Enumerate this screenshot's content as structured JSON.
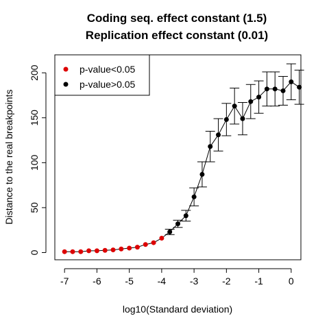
{
  "chart_data": {
    "type": "scatter",
    "title": "Coding seq. effect constant (1.5)",
    "subtitle": "Replication effect constant (0.01)",
    "xlabel": "log10(Standard deviation)",
    "ylabel": "Distance to the real breakpoints",
    "xlim": [
      -7.3,
      0.3
    ],
    "ylim": [
      -8,
      220
    ],
    "x_ticks": [
      -7,
      -6,
      -5,
      -4,
      -3,
      -2,
      -1,
      0
    ],
    "y_ticks": [
      0,
      50,
      100,
      150,
      200
    ],
    "grid": false,
    "legend_position": "top-left",
    "colors": {
      "significant": "#dd0000",
      "not_significant": "#000000",
      "line": "#000000"
    },
    "legend": [
      {
        "label": "p-value<0.05",
        "color_key": "significant"
      },
      {
        "label": "p-value>0.05",
        "color_key": "not_significant"
      }
    ],
    "points": [
      {
        "x": -7.0,
        "y": 1,
        "sig": true
      },
      {
        "x": -6.75,
        "y": 1,
        "sig": true
      },
      {
        "x": -6.5,
        "y": 1,
        "sig": true
      },
      {
        "x": -6.25,
        "y": 2,
        "sig": true
      },
      {
        "x": -6.0,
        "y": 2,
        "sig": true
      },
      {
        "x": -5.75,
        "y": 2.5,
        "sig": true
      },
      {
        "x": -5.5,
        "y": 3,
        "sig": true
      },
      {
        "x": -5.25,
        "y": 4,
        "sig": true
      },
      {
        "x": -5.0,
        "y": 5,
        "sig": true
      },
      {
        "x": -4.75,
        "y": 6,
        "sig": true
      },
      {
        "x": -4.5,
        "y": 9,
        "sig": true
      },
      {
        "x": -4.25,
        "y": 11,
        "sig": true
      },
      {
        "x": -4.0,
        "y": 16,
        "sig": true
      },
      {
        "x": -3.75,
        "y": 23,
        "sig": false,
        "err": 3
      },
      {
        "x": -3.5,
        "y": 32,
        "sig": false,
        "err": 4
      },
      {
        "x": -3.25,
        "y": 41,
        "sig": false,
        "err": 6
      },
      {
        "x": -3.0,
        "y": 62,
        "sig": false,
        "err": 10
      },
      {
        "x": -2.75,
        "y": 87,
        "sig": false,
        "err": 14
      },
      {
        "x": -2.5,
        "y": 118,
        "sig": false,
        "err": 17
      },
      {
        "x": -2.25,
        "y": 131,
        "sig": false,
        "err": 18
      },
      {
        "x": -2.0,
        "y": 148,
        "sig": false,
        "err": 18
      },
      {
        "x": -1.75,
        "y": 163,
        "sig": false,
        "err": 20
      },
      {
        "x": -1.5,
        "y": 149,
        "sig": false,
        "err": 18
      },
      {
        "x": -1.25,
        "y": 168,
        "sig": false,
        "err": 19
      },
      {
        "x": -1.0,
        "y": 173,
        "sig": false,
        "err": 18
      },
      {
        "x": -0.75,
        "y": 182,
        "sig": false,
        "err": 19
      },
      {
        "x": -0.5,
        "y": 182,
        "sig": false,
        "err": 19
      },
      {
        "x": -0.25,
        "y": 180,
        "sig": false,
        "err": 16
      },
      {
        "x": 0.0,
        "y": 190,
        "sig": false,
        "err": 20
      },
      {
        "x": 0.25,
        "y": 184,
        "sig": false,
        "err": 19
      }
    ]
  }
}
